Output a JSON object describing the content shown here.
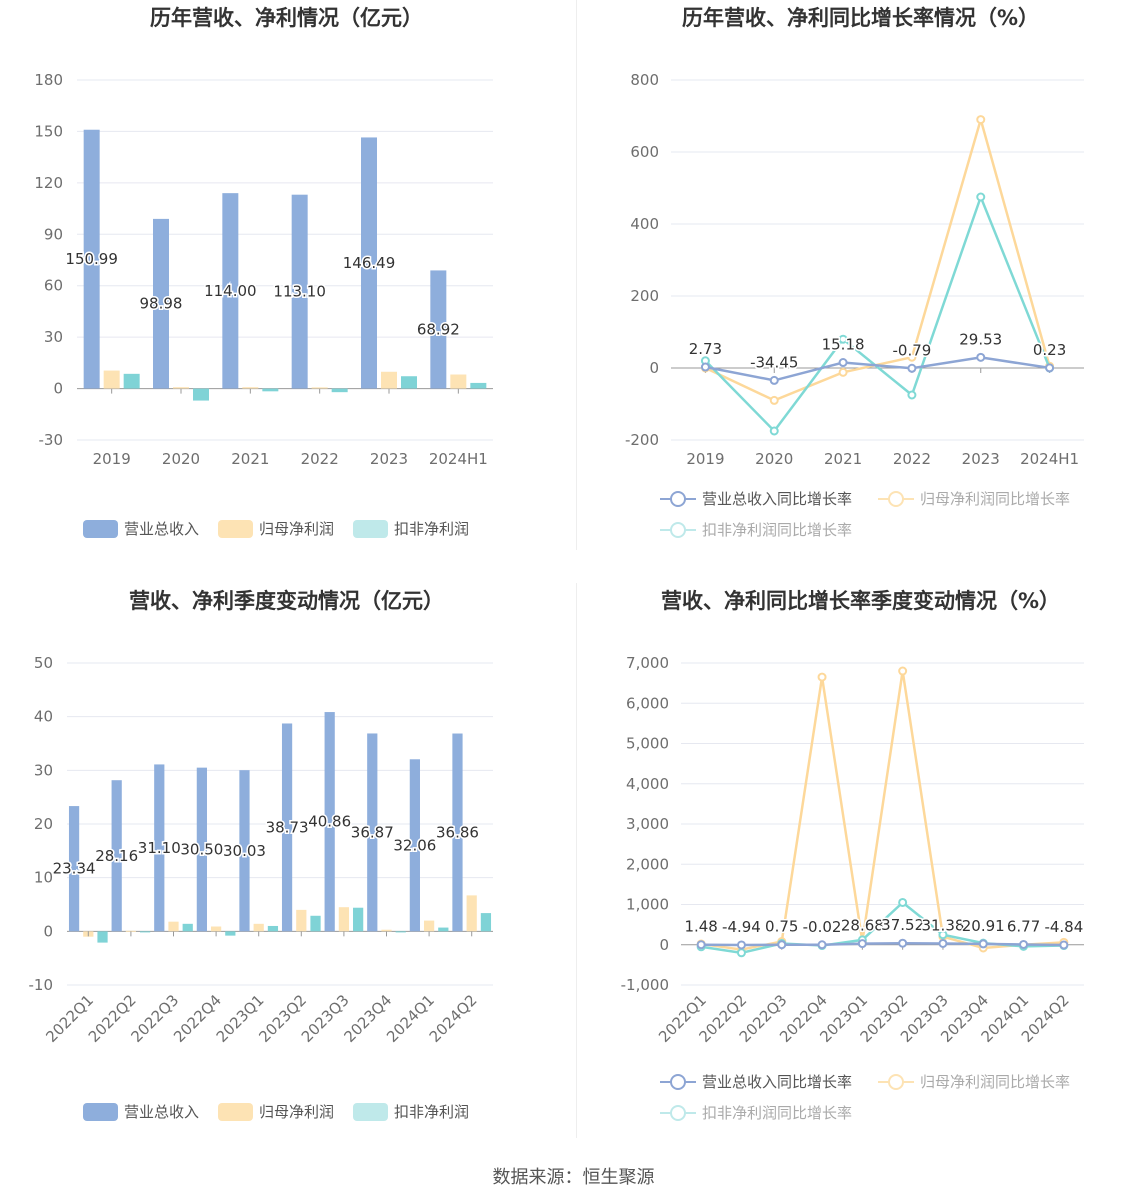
{
  "source": "数据来源：恒生聚源",
  "colors": {
    "revenue": "#8eaedc",
    "net_profit": "#fde3b4",
    "deducted": "#7fd3d6",
    "revenue_line": "#8da5d4",
    "net_profit_line": "#fdd89a",
    "deducted_line": "#7fd9d5"
  },
  "chart_data": [
    {
      "type": "bar",
      "title": "历年营收、净利情况（亿元）",
      "categories": [
        "2019",
        "2020",
        "2021",
        "2022",
        "2023",
        "2024H1"
      ],
      "ylim": [
        -30,
        180
      ],
      "yticks": [
        -30,
        0,
        30,
        60,
        90,
        120,
        150,
        180
      ],
      "series": [
        {
          "name": "营业总收入",
          "values": [
            150.99,
            98.98,
            114.0,
            113.1,
            146.49,
            68.92
          ],
          "labels": [
            "150.99",
            "98.98",
            "114.00",
            "113.10",
            "146.49",
            "68.92"
          ]
        },
        {
          "name": "归母净利润",
          "values": [
            10.5,
            0.8,
            0.8,
            0.7,
            9.8,
            8.2
          ]
        },
        {
          "name": "扣非净利润",
          "values": [
            8.6,
            -7.0,
            -1.6,
            -2.1,
            7.2,
            3.3
          ]
        }
      ],
      "legend": "bottom",
      "grid": true
    },
    {
      "type": "line",
      "title": "历年营收、净利同比增长率情况（%）",
      "categories": [
        "2019",
        "2020",
        "2021",
        "2022",
        "2023",
        "2024H1"
      ],
      "ylim": [
        -200,
        800
      ],
      "yticks": [
        -200,
        0,
        200,
        400,
        600,
        800
      ],
      "series": [
        {
          "name": "营业总收入同比增长率",
          "values": [
            2.73,
            -34.45,
            15.18,
            -0.79,
            29.53,
            0.23
          ],
          "labels": [
            "2.73",
            "-34.45",
            "15.18",
            "-0.79",
            "29.53",
            "0.23"
          ]
        },
        {
          "name": "归母净利润同比增长率",
          "values": [
            0,
            -90,
            -12,
            30,
            690,
            5
          ]
        },
        {
          "name": "扣非净利润同比增长率",
          "values": [
            20,
            -175,
            80,
            -75,
            475,
            0
          ]
        }
      ],
      "legend": "bottom",
      "grid": true
    },
    {
      "type": "bar",
      "title": "营收、净利季度变动情况（亿元）",
      "categories": [
        "2022Q1",
        "2022Q2",
        "2022Q3",
        "2022Q4",
        "2023Q1",
        "2023Q2",
        "2023Q3",
        "2023Q4",
        "2024Q1",
        "2024Q2"
      ],
      "ylim": [
        -10,
        50
      ],
      "yticks": [
        -10,
        0,
        10,
        20,
        30,
        40,
        50
      ],
      "series": [
        {
          "name": "营业总收入",
          "values": [
            23.34,
            28.16,
            31.1,
            30.5,
            30.03,
            38.73,
            40.86,
            36.87,
            32.06,
            36.86
          ],
          "labels": [
            "23.34",
            "28.16",
            "31.10",
            "30.50",
            "30.03",
            "38.73",
            "40.86",
            "36.87",
            "32.06",
            "36.86"
          ]
        },
        {
          "name": "归母净利润",
          "values": [
            -1.0,
            0.1,
            1.8,
            0.9,
            1.4,
            4.0,
            4.5,
            0.3,
            2.0,
            6.7
          ]
        },
        {
          "name": "扣非净利润",
          "values": [
            -2.1,
            -0.2,
            1.4,
            -0.8,
            1.0,
            2.9,
            4.4,
            -0.2,
            0.7,
            3.4
          ]
        }
      ],
      "legend": "bottom",
      "grid": true
    },
    {
      "type": "line",
      "title": "营收、净利同比增长率季度变动情况（%）",
      "categories": [
        "2022Q1",
        "2022Q2",
        "2022Q3",
        "2022Q4",
        "2023Q1",
        "2023Q2",
        "2023Q3",
        "2023Q4",
        "2024Q1",
        "2024Q2"
      ],
      "ylim": [
        -1000,
        7000
      ],
      "yticks": [
        -1000,
        0,
        1000,
        2000,
        3000,
        4000,
        5000,
        6000,
        7000
      ],
      "ytick_labels": [
        "-1,000",
        "0",
        "1,000",
        "2,000",
        "3,000",
        "4,000",
        "5,000",
        "6,000",
        "7,000"
      ],
      "series": [
        {
          "name": "营业总收入同比增长率",
          "values": [
            1.48,
            -4.94,
            0.75,
            -0.02,
            28.68,
            37.52,
            31.38,
            20.91,
            6.77,
            -4.84
          ],
          "labels": [
            "1.48",
            "-4.94",
            "0.75",
            "-0.02",
            "28.68",
            "37.52",
            "31.38",
            "20.91",
            "6.77",
            "-4.84"
          ]
        },
        {
          "name": "归母净利润同比增长率",
          "values": [
            20,
            -120,
            80,
            6650,
            80,
            6800,
            200,
            -80,
            0,
            60
          ]
        },
        {
          "name": "扣非净利润同比增长率",
          "values": [
            -50,
            -200,
            30,
            -20,
            120,
            1050,
            250,
            40,
            -40,
            -20
          ]
        }
      ],
      "legend": "bottom",
      "grid": true
    }
  ]
}
